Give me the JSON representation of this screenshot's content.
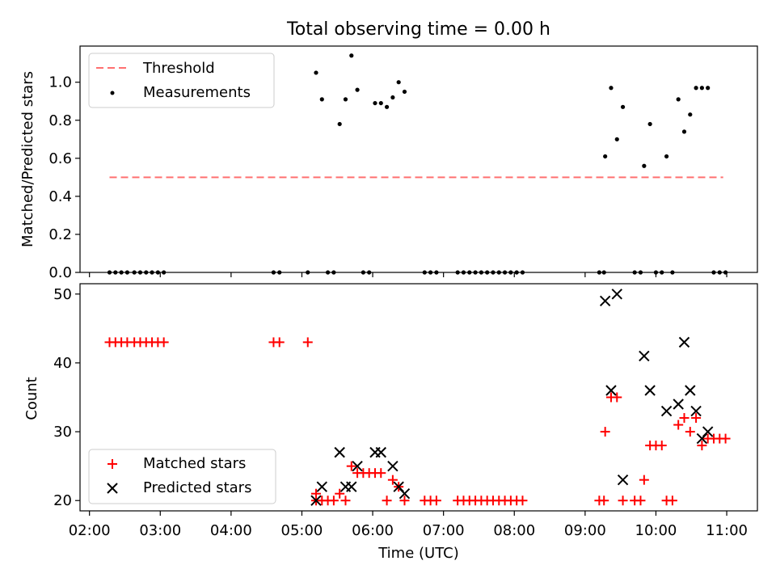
{
  "chart_data": [
    {
      "type": "scatter",
      "title": "Total observing time = 0.00 h",
      "xlabel": "",
      "ylabel": "Matched/Predicted stars",
      "ylim": [
        0,
        1.19
      ],
      "yticks": [
        0.0,
        0.2,
        0.4,
        0.6,
        0.8,
        1.0
      ],
      "ytick_labels": [
        "0.0",
        "0.2",
        "0.4",
        "0.6",
        "0.8",
        "1.0"
      ],
      "legend": {
        "placement": "top-left",
        "entries": [
          "Threshold",
          "Measurements"
        ]
      },
      "threshold": {
        "name": "Threshold",
        "y": 0.5,
        "x_start": "02:17",
        "x_end": "10:57",
        "color": "#ff7070",
        "dash": true
      },
      "series": [
        {
          "name": "Measurements",
          "color": "#000000",
          "points": [
            [
              "02:17",
              0
            ],
            [
              "02:22",
              0
            ],
            [
              "02:27",
              0
            ],
            [
              "02:32",
              0
            ],
            [
              "02:38",
              0
            ],
            [
              "02:43",
              0
            ],
            [
              "02:48",
              0
            ],
            [
              "02:53",
              0
            ],
            [
              "02:58",
              0
            ],
            [
              "03:03",
              0
            ],
            [
              "04:36",
              0
            ],
            [
              "04:41",
              0
            ],
            [
              "05:05",
              0
            ],
            [
              "05:12",
              1.05
            ],
            [
              "05:17",
              0.91
            ],
            [
              "05:22",
              0
            ],
            [
              "05:27",
              0
            ],
            [
              "05:32",
              0.78
            ],
            [
              "05:37",
              0.91
            ],
            [
              "05:42",
              1.14
            ],
            [
              "05:47",
              0.96
            ],
            [
              "05:52",
              0
            ],
            [
              "05:57",
              0
            ],
            [
              "06:02",
              0.89
            ],
            [
              "06:07",
              0.89
            ],
            [
              "06:12",
              0.87
            ],
            [
              "06:17",
              0.92
            ],
            [
              "06:22",
              1.0
            ],
            [
              "06:27",
              0.95
            ],
            [
              "06:44",
              0
            ],
            [
              "06:49",
              0
            ],
            [
              "06:54",
              0
            ],
            [
              "07:12",
              0
            ],
            [
              "07:17",
              0
            ],
            [
              "07:22",
              0
            ],
            [
              "07:27",
              0
            ],
            [
              "07:32",
              0
            ],
            [
              "07:37",
              0
            ],
            [
              "07:42",
              0
            ],
            [
              "07:47",
              0
            ],
            [
              "07:52",
              0
            ],
            [
              "07:57",
              0
            ],
            [
              "08:02",
              0
            ],
            [
              "08:07",
              0
            ],
            [
              "09:12",
              0
            ],
            [
              "09:16",
              0
            ],
            [
              "09:17",
              0.61
            ],
            [
              "09:22",
              0.97
            ],
            [
              "09:27",
              0.7
            ],
            [
              "09:32",
              0.87
            ],
            [
              "09:42",
              0
            ],
            [
              "09:47",
              0
            ],
            [
              "09:50",
              0.56
            ],
            [
              "09:55",
              0.78
            ],
            [
              "10:00",
              0
            ],
            [
              "10:05",
              0
            ],
            [
              "10:09",
              0.61
            ],
            [
              "10:14",
              0
            ],
            [
              "10:19",
              0.91
            ],
            [
              "10:24",
              0.74
            ],
            [
              "10:29",
              0.83
            ],
            [
              "10:34",
              0.97
            ],
            [
              "10:39",
              0.97
            ],
            [
              "10:44",
              0.97
            ],
            [
              "10:49",
              0
            ],
            [
              "10:54",
              0
            ],
            [
              "10:59",
              0
            ]
          ]
        }
      ]
    },
    {
      "type": "scatter",
      "title": "",
      "xlabel": "Time (UTC)",
      "ylabel": "Count",
      "ylim": [
        18.5,
        51.5
      ],
      "yticks": [
        20,
        30,
        40,
        50
      ],
      "ytick_labels": [
        "20",
        "30",
        "40",
        "50"
      ],
      "xlim": [
        "01:52",
        "11:26"
      ],
      "xticks": [
        "02:00",
        "03:00",
        "04:00",
        "05:00",
        "06:00",
        "07:00",
        "08:00",
        "09:00",
        "10:00",
        "11:00"
      ],
      "legend": {
        "placement": "bottom-left",
        "entries": [
          "Matched stars",
          "Predicted stars"
        ]
      },
      "series": [
        {
          "name": "Matched stars",
          "marker": "plus",
          "color": "#ff0000",
          "points": [
            [
              "02:17",
              43
            ],
            [
              "02:22",
              43
            ],
            [
              "02:27",
              43
            ],
            [
              "02:32",
              43
            ],
            [
              "02:38",
              43
            ],
            [
              "02:43",
              43
            ],
            [
              "02:48",
              43
            ],
            [
              "02:53",
              43
            ],
            [
              "02:58",
              43
            ],
            [
              "03:03",
              43
            ],
            [
              "04:36",
              43
            ],
            [
              "04:41",
              43
            ],
            [
              "05:05",
              43
            ],
            [
              "05:12",
              21
            ],
            [
              "05:12",
              20
            ],
            [
              "05:17",
              20
            ],
            [
              "05:22",
              20
            ],
            [
              "05:27",
              20
            ],
            [
              "05:32",
              21
            ],
            [
              "05:37",
              20
            ],
            [
              "05:42",
              25
            ],
            [
              "05:47",
              24
            ],
            [
              "05:52",
              24
            ],
            [
              "05:57",
              24
            ],
            [
              "06:02",
              24
            ],
            [
              "06:07",
              24
            ],
            [
              "06:12",
              20
            ],
            [
              "06:17",
              23
            ],
            [
              "06:22",
              22
            ],
            [
              "06:27",
              20
            ],
            [
              "06:44",
              20
            ],
            [
              "06:49",
              20
            ],
            [
              "06:54",
              20
            ],
            [
              "07:12",
              20
            ],
            [
              "07:17",
              20
            ],
            [
              "07:22",
              20
            ],
            [
              "07:27",
              20
            ],
            [
              "07:32",
              20
            ],
            [
              "07:37",
              20
            ],
            [
              "07:42",
              20
            ],
            [
              "07:47",
              20
            ],
            [
              "07:52",
              20
            ],
            [
              "07:57",
              20
            ],
            [
              "08:02",
              20
            ],
            [
              "08:07",
              20
            ],
            [
              "09:12",
              20
            ],
            [
              "09:16",
              20
            ],
            [
              "09:17",
              30
            ],
            [
              "09:22",
              35
            ],
            [
              "09:27",
              35
            ],
            [
              "09:32",
              20
            ],
            [
              "09:42",
              20
            ],
            [
              "09:47",
              20
            ],
            [
              "09:50",
              23
            ],
            [
              "09:55",
              28
            ],
            [
              "10:00",
              28
            ],
            [
              "10:05",
              28
            ],
            [
              "10:09",
              20
            ],
            [
              "10:14",
              20
            ],
            [
              "10:19",
              31
            ],
            [
              "10:24",
              32
            ],
            [
              "10:29",
              30
            ],
            [
              "10:34",
              32
            ],
            [
              "10:39",
              28
            ],
            [
              "10:44",
              29
            ],
            [
              "10:49",
              29
            ],
            [
              "10:54",
              29
            ],
            [
              "10:59",
              29
            ]
          ]
        },
        {
          "name": "Predicted stars",
          "marker": "x",
          "color": "#000000",
          "points": [
            [
              "05:12",
              20
            ],
            [
              "05:17",
              22
            ],
            [
              "05:32",
              27
            ],
            [
              "05:37",
              22
            ],
            [
              "05:42",
              22
            ],
            [
              "05:47",
              25
            ],
            [
              "06:02",
              27
            ],
            [
              "06:07",
              27
            ],
            [
              "06:17",
              25
            ],
            [
              "06:22",
              22
            ],
            [
              "06:27",
              21
            ],
            [
              "09:17",
              49
            ],
            [
              "09:22",
              36
            ],
            [
              "09:27",
              50
            ],
            [
              "09:32",
              23
            ],
            [
              "09:50",
              41
            ],
            [
              "09:55",
              36
            ],
            [
              "10:09",
              33
            ],
            [
              "10:19",
              34
            ],
            [
              "10:24",
              43
            ],
            [
              "10:29",
              36
            ],
            [
              "10:34",
              33
            ],
            [
              "10:39",
              29
            ],
            [
              "10:44",
              30
            ]
          ]
        }
      ]
    }
  ]
}
